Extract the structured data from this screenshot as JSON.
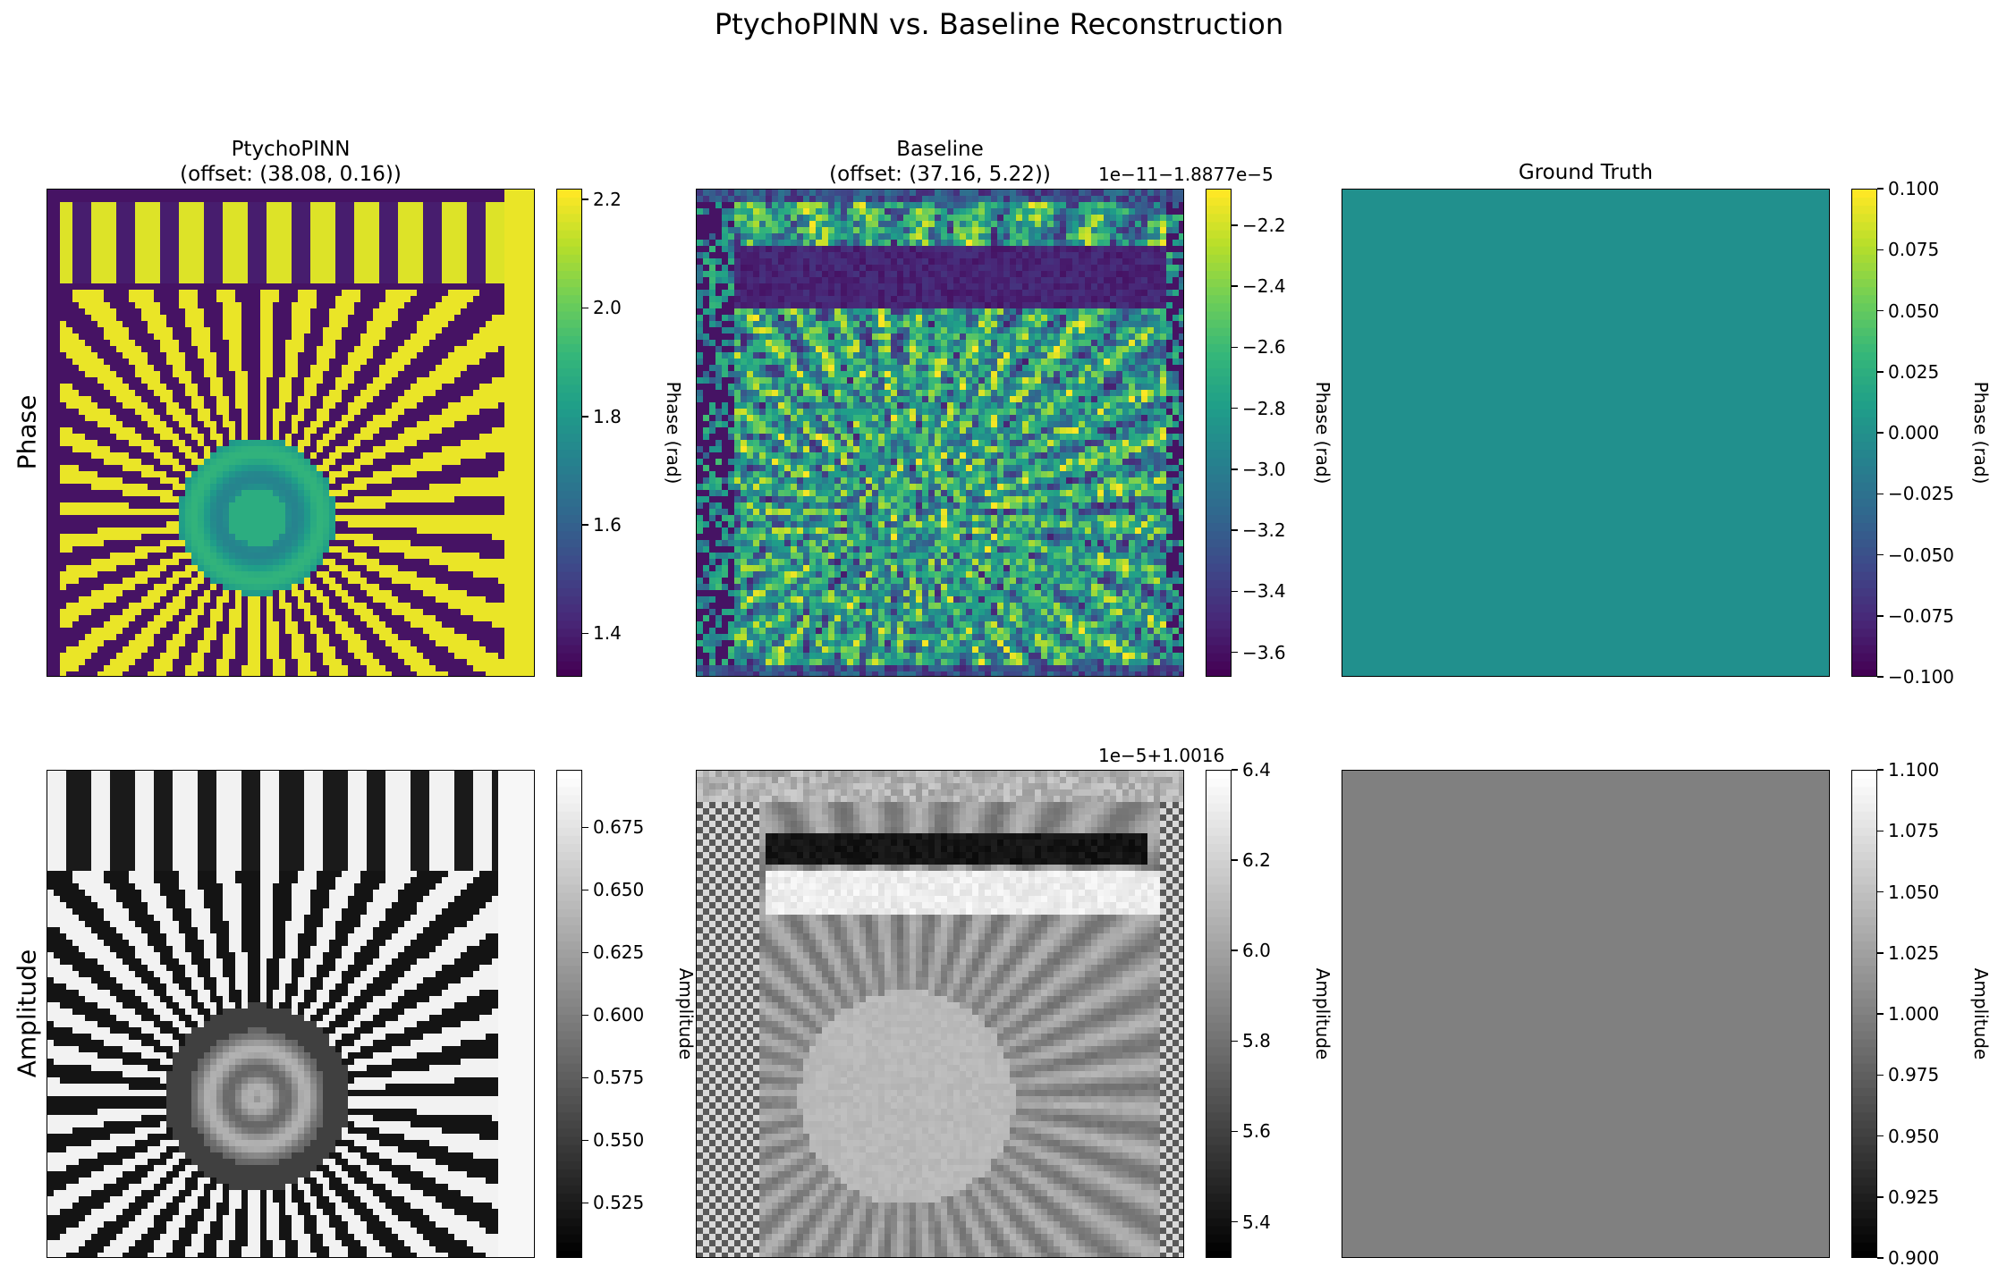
{
  "figure": {
    "title": "PtychoPINN vs. Baseline Reconstruction",
    "row_labels": [
      "Phase",
      "Amplitude"
    ]
  },
  "chart_data": [
    {
      "type": "heatmap",
      "row": "Phase",
      "title": "PtychoPINN\n(offset: (38.08, 0.16))",
      "colormap": "viridis",
      "colorbar": {
        "label": "Phase (rad)",
        "ticks": [
          1.4,
          1.6,
          1.8,
          2.0,
          2.2
        ],
        "tick_labels": [
          "1.4",
          "1.6",
          "1.8",
          "2.0",
          "2.2"
        ],
        "range": [
          1.32,
          2.22
        ],
        "offset_text": ""
      },
      "content": "radial siemens-star pattern"
    },
    {
      "type": "heatmap",
      "row": "Phase",
      "title": "Baseline\n(offset: (37.16, 5.22))",
      "colormap": "viridis",
      "colorbar": {
        "label": "Phase (rad)",
        "ticks": [
          -2.2,
          -2.4,
          -2.6,
          -2.8,
          -3.0,
          -3.2,
          -3.4,
          -3.6
        ],
        "tick_labels": [
          "−2.2",
          "−2.4",
          "−2.6",
          "−2.8",
          "−3.0",
          "−3.2",
          "−3.4",
          "−3.6"
        ],
        "range": [
          -3.68,
          -2.08
        ],
        "offset_text": "1e−11−1.8877e−5"
      },
      "content": "noisy siemens-star pattern"
    },
    {
      "type": "heatmap",
      "row": "Phase",
      "title": "Ground Truth",
      "colormap": "viridis",
      "colorbar": {
        "label": "Phase (rad)",
        "ticks": [
          0.1,
          0.075,
          0.05,
          0.025,
          0.0,
          -0.025,
          -0.05,
          -0.075,
          -0.1
        ],
        "tick_labels": [
          "0.100",
          "0.075",
          "0.050",
          "0.025",
          "0.000",
          "−0.025",
          "−0.050",
          "−0.075",
          "−0.100"
        ],
        "range": [
          -0.1,
          0.1
        ],
        "offset_text": ""
      },
      "content": "uniform",
      "uniform_value": 0.0,
      "uniform_color": "#21908d"
    },
    {
      "type": "heatmap",
      "row": "Amplitude",
      "title": "",
      "colormap": "gray",
      "colorbar": {
        "label": "Amplitude",
        "ticks": [
          0.675,
          0.65,
          0.625,
          0.6,
          0.575,
          0.55,
          0.525
        ],
        "tick_labels": [
          "0.675",
          "0.650",
          "0.625",
          "0.600",
          "0.575",
          "0.550",
          "0.525"
        ],
        "range": [
          0.503,
          0.698
        ],
        "offset_text": ""
      },
      "content": "radial siemens-star pattern"
    },
    {
      "type": "heatmap",
      "row": "Amplitude",
      "title": "",
      "colormap": "gray",
      "colorbar": {
        "label": "Amplitude",
        "ticks": [
          6.4,
          6.2,
          6.0,
          5.8,
          5.6,
          5.4
        ],
        "tick_labels": [
          "6.4",
          "6.2",
          "6.0",
          "5.8",
          "5.6",
          "5.4"
        ],
        "range": [
          5.32,
          6.4
        ],
        "offset_text": "1e−5+1.0016"
      },
      "content": "blurred siemens-star with checkerboard edges"
    },
    {
      "type": "heatmap",
      "row": "Amplitude",
      "title": "",
      "colormap": "gray",
      "colorbar": {
        "label": "Amplitude",
        "ticks": [
          1.1,
          1.075,
          1.05,
          1.025,
          1.0,
          0.975,
          0.95,
          0.925,
          0.9
        ],
        "tick_labels": [
          "1.100",
          "1.075",
          "1.050",
          "1.025",
          "1.000",
          "0.975",
          "0.950",
          "0.925",
          "0.900"
        ],
        "range": [
          0.9,
          1.1
        ],
        "offset_text": ""
      },
      "content": "uniform",
      "uniform_value": 1.0,
      "uniform_color": "#808080"
    }
  ]
}
